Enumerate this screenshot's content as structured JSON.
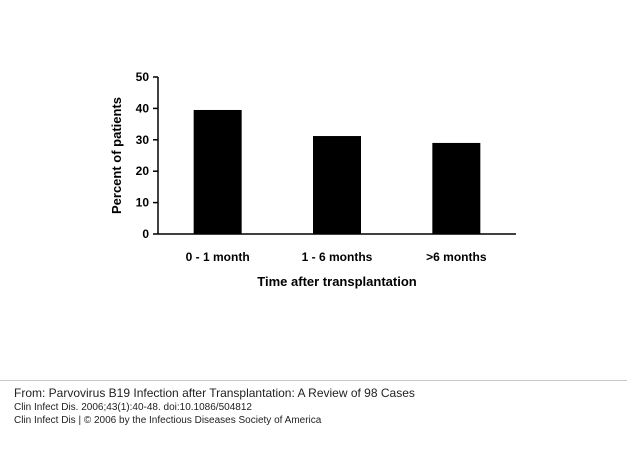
{
  "chart_data": {
    "type": "bar",
    "categories": [
      "0 - 1 month",
      "1 - 6 months",
      ">6 months"
    ],
    "values": [
      39.5,
      31.2,
      29.0
    ],
    "xlabel": "Time after transplantation",
    "ylabel": "Percent of patients",
    "ylim": [
      0,
      50
    ],
    "yticks": [
      0,
      10,
      20,
      30,
      40,
      50
    ],
    "bar_color": "#000000",
    "grid": false,
    "legend": "none"
  },
  "citation": {
    "from": "From: Parvovirus B19 Infection after Transplantation: A Review of 98 Cases",
    "ref": "Clin Infect Dis. 2006;43(1):40-48. doi:10.1086/504812",
    "copyright": "Clin Infect Dis | © 2006 by the Infectious Diseases Society of America"
  }
}
